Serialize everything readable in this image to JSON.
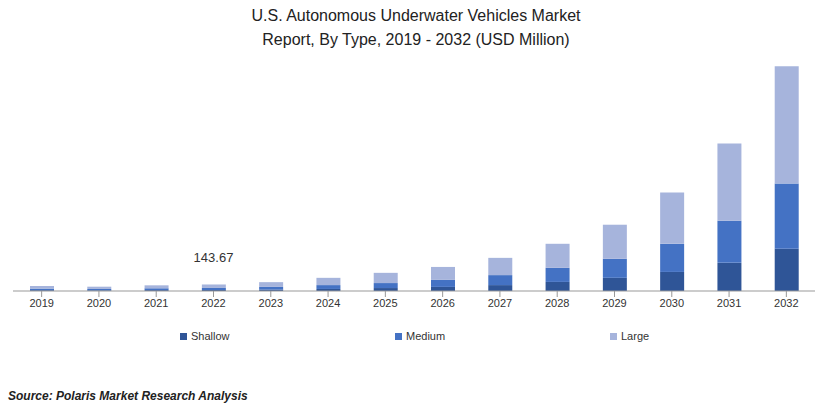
{
  "chart_data": {
    "type": "bar",
    "title": "U.S. Autonomous Underwater Vehicles Market Report, By Type, 2019 - 2032 (USD Million)",
    "source": "Source: Polaris Market Research Analysis",
    "categories": [
      "2019",
      "2020",
      "2021",
      "2022",
      "2023",
      "2024",
      "2025",
      "2026",
      "2027",
      "2028",
      "2029",
      "2030",
      "2031",
      "2032"
    ],
    "series": [
      {
        "name": "Shallow",
        "color": "#2f5597",
        "values": [
          18,
          15,
          20,
          22,
          30,
          45,
          65,
          90,
          130,
          200,
          290,
          420,
          620,
          930
        ]
      },
      {
        "name": "Medium",
        "color": "#4472c4",
        "values": [
          35,
          30,
          40,
          45,
          60,
          85,
          110,
          155,
          220,
          310,
          420,
          620,
          930,
          1440
        ]
      },
      {
        "name": "Large",
        "color": "#a6b4dc",
        "values": [
          57,
          50,
          65,
          76.67,
          105,
          160,
          225,
          285,
          380,
          530,
          750,
          1130,
          1700,
          2580
        ]
      }
    ],
    "annotations": [
      {
        "x": "2022",
        "value": 143.67
      }
    ],
    "ylim": [
      0,
      5000
    ],
    "stacked": true,
    "grid": false,
    "legend": "bottom",
    "tick_labels": "x"
  }
}
